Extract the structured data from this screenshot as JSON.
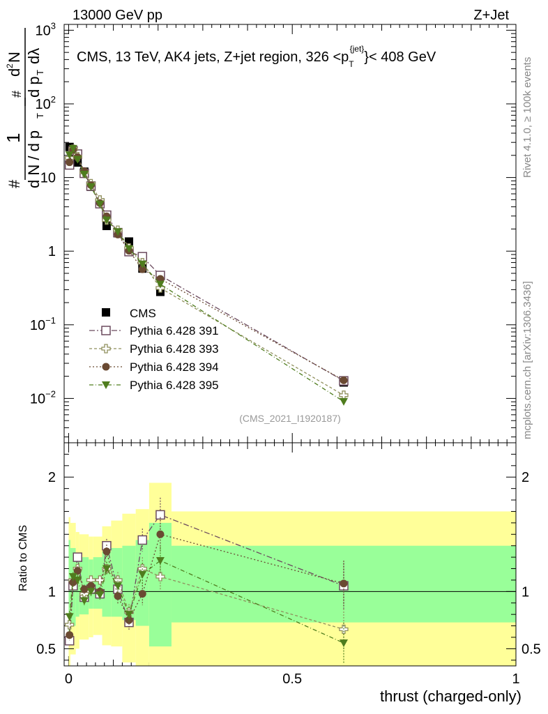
{
  "header": {
    "energy_label": "13000 GeV pp",
    "process_label": "Z+Jet"
  },
  "side_labels": {
    "rivet": "Rivet 4.1.0, ≥ 100k events",
    "mcplots": "mcplots.cern.ch [arXiv:1306.3436]"
  },
  "ratio_ylabel": "Ratio to CMS",
  "colors": {
    "cms": "#000000",
    "p391": "#6b4a5e",
    "p393": "#8f8f5c",
    "p394": "#6a4a32",
    "p395": "#4f7d1e",
    "band_inner": "#99ff99",
    "band_outer": "#ffff99"
  },
  "chart_data": {
    "type": "scatter",
    "title": "CMS, 13 TeV, AK4 jets, Z+jet region, 326 <p_T^{jet}< 408 GeV",
    "title_parts": {
      "main": "CMS, 13 TeV, AK4 jets, Z+jet region, 326 <p",
      "sub": "T",
      "sup": "{jet}",
      "tail": "}< 408 GeV"
    },
    "analysis_id": "(CMS_2021_I1920187)",
    "xlabel": "thrust (charged-only)",
    "ylabel": "1/dN/dp_T dN^2/dp_T dλ",
    "xlim": [
      -0.01,
      1.0
    ],
    "ylim": [
      0.0025,
      1200
    ],
    "yscale": "log",
    "ratio_ylim": [
      0.35,
      2.3
    ],
    "x_ticks": [
      {
        "v": 0,
        "label": "0"
      },
      {
        "v": 0.5,
        "label": "0.5"
      },
      {
        "v": 1,
        "label": "1"
      }
    ],
    "y_ticks": [
      {
        "v": 1000,
        "m": "10",
        "e": "3"
      },
      {
        "v": 100,
        "m": "10",
        "e": "2"
      },
      {
        "v": 10,
        "m": "10",
        "e": ""
      },
      {
        "v": 1,
        "m": "1",
        "e": ""
      },
      {
        "v": 0.1,
        "m": "10",
        "e": "−1"
      },
      {
        "v": 0.01,
        "m": "10",
        "e": "−2"
      }
    ],
    "ratio_ticks": [
      {
        "v": 2,
        "label": "2"
      },
      {
        "v": 1,
        "label": "1"
      },
      {
        "v": 0.5,
        "label": "0.5"
      }
    ],
    "x": [
      0.002,
      0.01,
      0.02,
      0.035,
      0.05,
      0.07,
      0.085,
      0.11,
      0.135,
      0.165,
      0.205,
      0.615
    ],
    "bin_edges": [
      0.0,
      0.004,
      0.016,
      0.024,
      0.045,
      0.055,
      0.075,
      0.095,
      0.12,
      0.15,
      0.18,
      0.23,
      1.0
    ],
    "cms_values": [
      26,
      22,
      16,
      12,
      7.5,
      4.5,
      2.2,
      1.75,
      1.35,
      0.58,
      0.28,
      0.0165
    ],
    "band_inner": [
      [
        0.55,
        1.45
      ],
      [
        0.7,
        1.38
      ],
      [
        0.78,
        1.3
      ],
      [
        0.8,
        1.3
      ],
      [
        0.85,
        1.28
      ],
      [
        0.85,
        1.3
      ],
      [
        0.78,
        1.35
      ],
      [
        0.78,
        1.38
      ],
      [
        0.75,
        1.4
      ],
      [
        0.7,
        1.45
      ],
      [
        0.52,
        1.6
      ],
      [
        0.73,
        1.4
      ]
    ],
    "band_outer": [
      [
        0.35,
        1.65
      ],
      [
        0.45,
        1.6
      ],
      [
        0.5,
        1.52
      ],
      [
        0.58,
        1.5
      ],
      [
        0.6,
        1.48
      ],
      [
        0.62,
        1.48
      ],
      [
        0.53,
        1.57
      ],
      [
        0.52,
        1.62
      ],
      [
        0.38,
        1.68
      ],
      [
        0.35,
        1.72
      ],
      [
        0.35,
        1.95
      ],
      [
        0.35,
        1.7
      ]
    ],
    "series": [
      {
        "name": "Pythia 6.428 391",
        "marker": "open_square",
        "dash": "8,3,2,3",
        "ratio": [
          0.57,
          1.05,
          1.3,
          0.95,
          1.02,
          0.98,
          1.4,
          1.02,
          0.73,
          1.45,
          1.67,
          1.05
        ],
        "ratio_err": [
          0.05,
          0.04,
          0.04,
          0.04,
          0.04,
          0.04,
          0.06,
          0.07,
          0.07,
          0.1,
          0.15,
          0.2
        ]
      },
      {
        "name": "Pythia 6.428 393",
        "marker": "open_plus",
        "dash": "4,3",
        "ratio": [
          0.71,
          1.1,
          1.2,
          0.98,
          1.1,
          1.1,
          1.2,
          1.1,
          0.82,
          1.2,
          1.13,
          0.67
        ],
        "ratio_err": [
          0.05,
          0.04,
          0.04,
          0.04,
          0.04,
          0.04,
          0.06,
          0.07,
          0.07,
          0.1,
          0.12,
          0.18
        ]
      },
      {
        "name": "Pythia 6.428 394",
        "marker": "filled_circle",
        "dash": "2,3",
        "ratio": [
          0.62,
          1.08,
          1.18,
          1.02,
          1.05,
          1.0,
          1.35,
          0.96,
          0.75,
          0.98,
          1.5,
          1.07
        ],
        "ratio_err": [
          0.05,
          0.04,
          0.04,
          0.04,
          0.04,
          0.04,
          0.06,
          0.07,
          0.07,
          0.1,
          0.15,
          0.2
        ]
      },
      {
        "name": "Pythia 6.428 395",
        "marker": "filled_triangle_down",
        "dash": "6,3,1,3",
        "ratio": [
          0.78,
          1.13,
          1.1,
          0.92,
          1.0,
          0.97,
          1.2,
          1.05,
          0.8,
          1.15,
          1.27,
          0.55
        ],
        "ratio_err": [
          0.05,
          0.04,
          0.04,
          0.04,
          0.04,
          0.04,
          0.06,
          0.07,
          0.07,
          0.1,
          0.12,
          0.18
        ]
      }
    ],
    "legend_position": "lower-left",
    "legend_cms_label": "CMS"
  }
}
